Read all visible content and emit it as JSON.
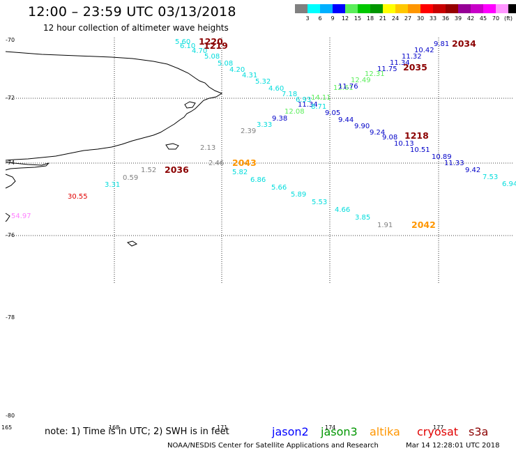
{
  "header": {
    "title": "12:00 – 23:59 UTC 03/13/2018",
    "subtitle": "12 hour collection of altimeter wave heights"
  },
  "legend": {
    "colors": [
      "#808080",
      "#00ffff",
      "#00b0ff",
      "#0000ff",
      "#5aee5a",
      "#00c800",
      "#009600",
      "#ffff00",
      "#ffc800",
      "#ff9600",
      "#ff0000",
      "#c80000",
      "#960000",
      "#960096",
      "#c800c8",
      "#ff00ff",
      "#ff96ff",
      "#000000"
    ],
    "ticks": [
      "3",
      "6",
      "9",
      "12",
      "15",
      "18",
      "21",
      "24",
      "27",
      "30",
      "33",
      "36",
      "39",
      "42",
      "45",
      "70",
      "(ft)"
    ]
  },
  "axes": {
    "lat_ticks": [
      "-70",
      "-72",
      "-74",
      "-76",
      "-78",
      "-80"
    ],
    "lon_ticks": [
      "165",
      "168",
      "171",
      "174",
      "177"
    ]
  },
  "readings": [
    {
      "text": "5.60",
      "color": "#00dcdc"
    },
    {
      "text": "6.10",
      "color": "#00dcdc"
    },
    {
      "text": "4.70",
      "color": "#00dcdc"
    },
    {
      "text": "5.08",
      "color": "#00dcdc"
    },
    {
      "text": "5.08",
      "color": "#00dcdc"
    },
    {
      "text": "4.20",
      "color": "#00dcdc"
    },
    {
      "text": "4.31",
      "color": "#00dcdc"
    },
    {
      "text": "5.32",
      "color": "#00dcdc"
    },
    {
      "text": "4.60",
      "color": "#00dcdc"
    },
    {
      "text": "7.18",
      "color": "#00dcdc"
    },
    {
      "text": "6.93",
      "color": "#00dcdc"
    },
    {
      "text": "14.11",
      "color": "#5aee5a"
    },
    {
      "text": "11.34",
      "color": "#0000c8"
    },
    {
      "text": "8.71",
      "color": "#00dcdc"
    },
    {
      "text": "12.08",
      "color": "#5aee5a"
    },
    {
      "text": "9.05",
      "color": "#0000c8"
    },
    {
      "text": "9.44",
      "color": "#0000c8"
    },
    {
      "text": "9.90",
      "color": "#0000c8"
    },
    {
      "text": "9.24",
      "color": "#0000c8"
    },
    {
      "text": "9.08",
      "color": "#0000c8"
    },
    {
      "text": "10.13",
      "color": "#0000c8"
    },
    {
      "text": "10.51",
      "color": "#0000c8"
    },
    {
      "text": "10.89",
      "color": "#0000c8"
    },
    {
      "text": "11.33",
      "color": "#0000c8"
    },
    {
      "text": "9.42",
      "color": "#0000c8"
    },
    {
      "text": "7.53",
      "color": "#00dcdc"
    },
    {
      "text": "6.94",
      "color": "#00dcdc"
    },
    {
      "text": "9.81",
      "color": "#0000c8"
    },
    {
      "text": "10.42",
      "color": "#0000c8"
    },
    {
      "text": "11.32",
      "color": "#0000c8"
    },
    {
      "text": "11.34",
      "color": "#0000c8"
    },
    {
      "text": "11.75",
      "color": "#0000c8"
    },
    {
      "text": "12.31",
      "color": "#5aee5a"
    },
    {
      "text": "12.49",
      "color": "#5aee5a"
    },
    {
      "text": "12.61",
      "color": "#5aee5a"
    },
    {
      "text": "11.76",
      "color": "#0000c8"
    },
    {
      "text": "9.38",
      "color": "#0000c8"
    },
    {
      "text": "3.33",
      "color": "#00dcdc"
    },
    {
      "text": "2.39",
      "color": "#808080"
    },
    {
      "text": "2.13",
      "color": "#808080"
    },
    {
      "text": "2.46",
      "color": "#808080"
    },
    {
      "text": "5.82",
      "color": "#00dcdc"
    },
    {
      "text": "6.86",
      "color": "#00dcdc"
    },
    {
      "text": "5.66",
      "color": "#00dcdc"
    },
    {
      "text": "5.89",
      "color": "#00dcdc"
    },
    {
      "text": "5.53",
      "color": "#00dcdc"
    },
    {
      "text": "4.66",
      "color": "#00dcdc"
    },
    {
      "text": "3.85",
      "color": "#00dcdc"
    },
    {
      "text": "1.91",
      "color": "#808080"
    },
    {
      "text": "1.52",
      "color": "#808080"
    },
    {
      "text": "0.59",
      "color": "#808080"
    },
    {
      "text": "3.31",
      "color": "#00dcdc"
    },
    {
      "text": "30.55",
      "color": "#e00000"
    },
    {
      "text": "54.97",
      "color": "#ff80ff"
    }
  ],
  "times": [
    {
      "text": "1220",
      "color": "#8b0000"
    },
    {
      "text": "1219",
      "color": "#8b0000"
    },
    {
      "text": "2034",
      "color": "#8b0000"
    },
    {
      "text": "2035",
      "color": "#8b0000"
    },
    {
      "text": "1218",
      "color": "#8b0000"
    },
    {
      "text": "2043",
      "color": "#ff9600"
    },
    {
      "text": "2036",
      "color": "#8b0000"
    },
    {
      "text": "2042",
      "color": "#ff9600"
    }
  ],
  "footer": {
    "note": "note: 1) Time is in UTC; 2) SWH is in feet",
    "missions": [
      {
        "text": "jason2",
        "color": "#0000ff"
      },
      {
        "text": "jason3",
        "color": "#009600"
      },
      {
        "text": "altika",
        "color": "#ff9600"
      },
      {
        "text": "cryosat",
        "color": "#e00000"
      },
      {
        "text": "s3a",
        "color": "#8b0000"
      }
    ],
    "credit": "NOAA/NESDIS Center for Satellite Applications and Research",
    "stamp": "Mar 14 12:28:01 UTC 2018"
  }
}
